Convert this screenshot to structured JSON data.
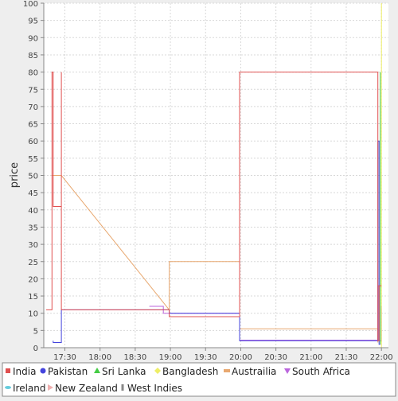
{
  "chart_data": {
    "type": "line",
    "xlabel": "",
    "ylabel": "price",
    "ylim": [
      0,
      100
    ],
    "yticks": [
      0,
      5,
      10,
      15,
      20,
      25,
      30,
      35,
      40,
      45,
      50,
      55,
      60,
      65,
      70,
      75,
      80,
      85,
      90,
      95,
      100
    ],
    "xlim": [
      "17:12",
      "22:06"
    ],
    "xticks": [
      "17:30",
      "18:00",
      "18:30",
      "19:00",
      "19:30",
      "20:00",
      "20:30",
      "21:00",
      "21:30",
      "22:00"
    ],
    "grid": true,
    "legend_position": "bottom",
    "series": [
      {
        "name": "India",
        "color": "#e05050",
        "marker": "square",
        "points": [
          [
            "17:14",
            11
          ],
          [
            "17:19",
            11
          ],
          [
            "17:19",
            80
          ],
          [
            "17:20",
            80
          ],
          [
            "17:20",
            41
          ],
          [
            "17:27",
            41
          ],
          [
            "17:27",
            80
          ],
          [
            "17:27",
            11
          ],
          [
            "18:59",
            11
          ],
          [
            "18:59",
            9
          ],
          [
            "19:59",
            9
          ],
          [
            "19:59",
            80
          ],
          [
            "21:57",
            80
          ],
          [
            "21:57",
            2
          ],
          [
            "21:58",
            2
          ],
          [
            "21:58",
            18
          ],
          [
            "22:00",
            18
          ]
        ]
      },
      {
        "name": "Pakistan",
        "color": "#4444dd",
        "marker": "circle",
        "points": [
          [
            "17:20",
            2
          ],
          [
            "17:20",
            1.5
          ],
          [
            "17:27",
            1.5
          ],
          [
            "17:27",
            11
          ],
          [
            "18:59",
            11
          ],
          [
            "18:59",
            10
          ],
          [
            "19:59",
            10
          ],
          [
            "19:59",
            2
          ],
          [
            "21:57",
            2
          ],
          [
            "21:57",
            60
          ],
          [
            "21:58",
            60
          ],
          [
            "21:58",
            1
          ],
          [
            "21:59",
            1
          ]
        ]
      },
      {
        "name": "Sri Lanka",
        "color": "#44cc44",
        "marker": "triangle-up",
        "points": [
          [
            "21:59",
            80
          ],
          [
            "21:59",
            1
          ]
        ]
      },
      {
        "name": "Bangladesh",
        "color": "#eeee66",
        "marker": "diamond",
        "points": [
          [
            "22:00",
            100
          ],
          [
            "22:00",
            0
          ]
        ]
      },
      {
        "name": "Austrailia",
        "color": "#e8a870",
        "marker": "rect",
        "points": [
          [
            "17:19",
            50
          ],
          [
            "17:27",
            50
          ],
          [
            "18:59",
            11
          ],
          [
            "18:59",
            25
          ],
          [
            "19:59",
            25
          ],
          [
            "19:59",
            5.5
          ],
          [
            "21:57",
            5.5
          ],
          [
            "21:57",
            1.5
          ]
        ]
      },
      {
        "name": "South Africa",
        "color": "#bb66dd",
        "marker": "triangle-down",
        "points": [
          [
            "18:42",
            12
          ],
          [
            "18:54",
            12
          ],
          [
            "18:54",
            10
          ],
          [
            "19:59",
            10
          ],
          [
            "19:59",
            2.2
          ],
          [
            "21:57",
            2.2
          ],
          [
            "21:57",
            18
          ],
          [
            "21:58",
            18
          ],
          [
            "21:58",
            2
          ],
          [
            "22:00",
            2
          ],
          [
            "22:00",
            12
          ]
        ]
      },
      {
        "name": "Ireland",
        "color": "#66ccdd",
        "marker": "ellipse",
        "points": []
      },
      {
        "name": "New Zealand",
        "color": "#f0b0b0",
        "marker": "triangle-right",
        "points": []
      },
      {
        "name": "West Indies",
        "color": "#888888",
        "marker": "bar",
        "points": []
      }
    ]
  }
}
